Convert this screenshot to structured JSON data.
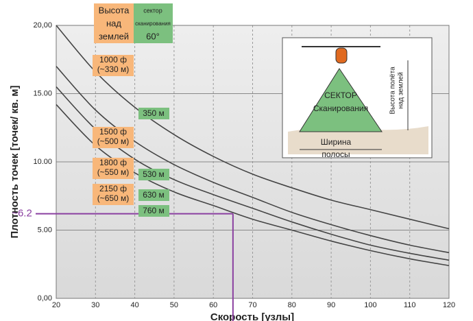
{
  "chart_data": {
    "type": "line",
    "x_label": "Скорость [узлы]",
    "y_label": "Плотность точек [точек/ кв. м]",
    "x": [
      20,
      30,
      40,
      50,
      60,
      70,
      80,
      90,
      100,
      110,
      120
    ],
    "series": [
      {
        "name": "350 м",
        "color": "#444444",
        "values": [
          20,
          16.6,
          14.0,
          12.0,
          10.4,
          9.1,
          8.1,
          7.2,
          6.5,
          5.8,
          5.1
        ]
      },
      {
        "name": "530 м",
        "color": "#444444",
        "values": [
          17.0,
          13.8,
          11.5,
          9.8,
          8.5,
          7.4,
          6.3,
          5.4,
          4.6,
          3.9,
          3.35
        ]
      },
      {
        "name": "630 м",
        "color": "#444444",
        "values": [
          15.5,
          12.4,
          10.2,
          8.7,
          7.6,
          6.6,
          5.6,
          4.7,
          3.9,
          3.3,
          2.8
        ]
      },
      {
        "name": "760 м",
        "color": "#444444",
        "values": [
          14.2,
          11.2,
          9.2,
          7.8,
          6.8,
          5.8,
          5.0,
          4.2,
          3.5,
          2.9,
          2.4
        ]
      }
    ],
    "xlim": [
      20,
      120
    ],
    "ylim": [
      0,
      20
    ],
    "xticks": [
      20,
      30,
      40,
      50,
      60,
      70,
      80,
      90,
      100,
      110,
      120
    ],
    "yticks": [
      {
        "value": 0,
        "label": "0,00"
      },
      {
        "value": 5,
        "label": "5.00"
      },
      {
        "value": 10,
        "label": "10.00"
      },
      {
        "value": 15,
        "label": "15.00"
      },
      {
        "value": 20,
        "label": "20,00"
      }
    ],
    "grid": true,
    "reference": {
      "x": 65,
      "y": 6.2,
      "label": "~6.2",
      "color": "#8a3fa0"
    },
    "header_labels": {
      "altitude": [
        "Высота",
        "над",
        "землей"
      ],
      "sector": [
        "сектор",
        "сканирования",
        "60°"
      ]
    },
    "altitude_labels": [
      [
        "1000 ф",
        "(~330 м)"
      ],
      [
        "1500 ф",
        "(~500 м)"
      ],
      [
        "1800 ф",
        "(~550 м)"
      ],
      [
        "2150 ф",
        "(~650 м)"
      ]
    ],
    "inset": {
      "sector": [
        "СЕКТОР",
        "Сканирования"
      ],
      "swath": [
        "Ширина",
        "полосы"
      ],
      "height": [
        "Высота полёта",
        "над землей"
      ]
    }
  }
}
